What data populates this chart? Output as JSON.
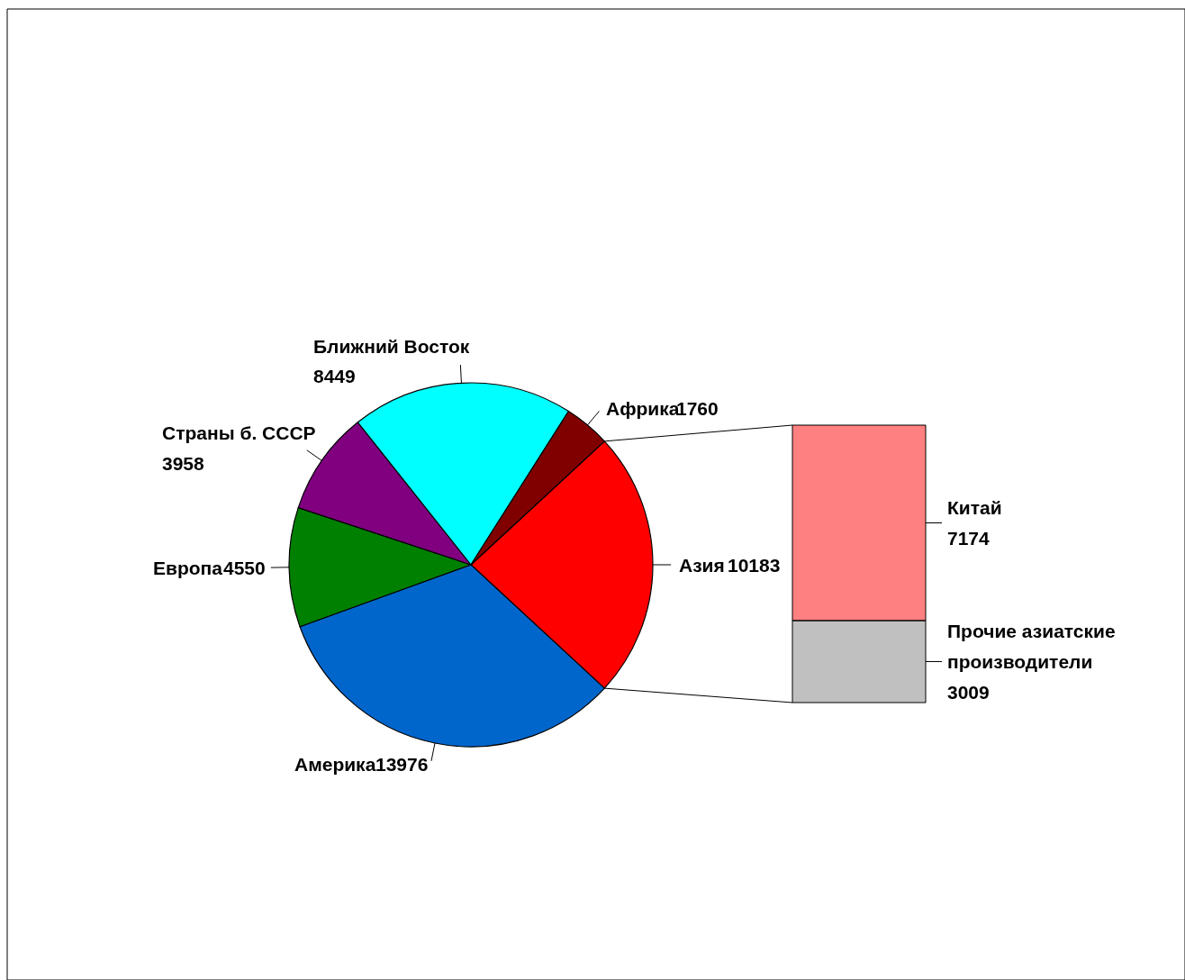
{
  "chart_data": [
    {
      "type": "pie",
      "categories": [
        "Азия",
        "Америка",
        "Европа",
        "Страны б. СССР",
        "Ближний Восток",
        "Африка"
      ],
      "values": [
        10183,
        13976,
        4550,
        3958,
        8449,
        1760
      ],
      "colors": [
        "#ff0000",
        "#0066cc",
        "#008000",
        "#800080",
        "#00ffff",
        "#800000"
      ],
      "data_labels": true
    },
    {
      "type": "bar",
      "stacked": true,
      "categories": [
        null
      ],
      "data_labels": true,
      "series": [
        {
          "name": "Прочие азиатские производители",
          "color": "#c0c0c0",
          "values": [
            3009
          ]
        },
        {
          "name": "Китай",
          "color": "#ff8080",
          "values": [
            7174
          ]
        }
      ]
    }
  ]
}
